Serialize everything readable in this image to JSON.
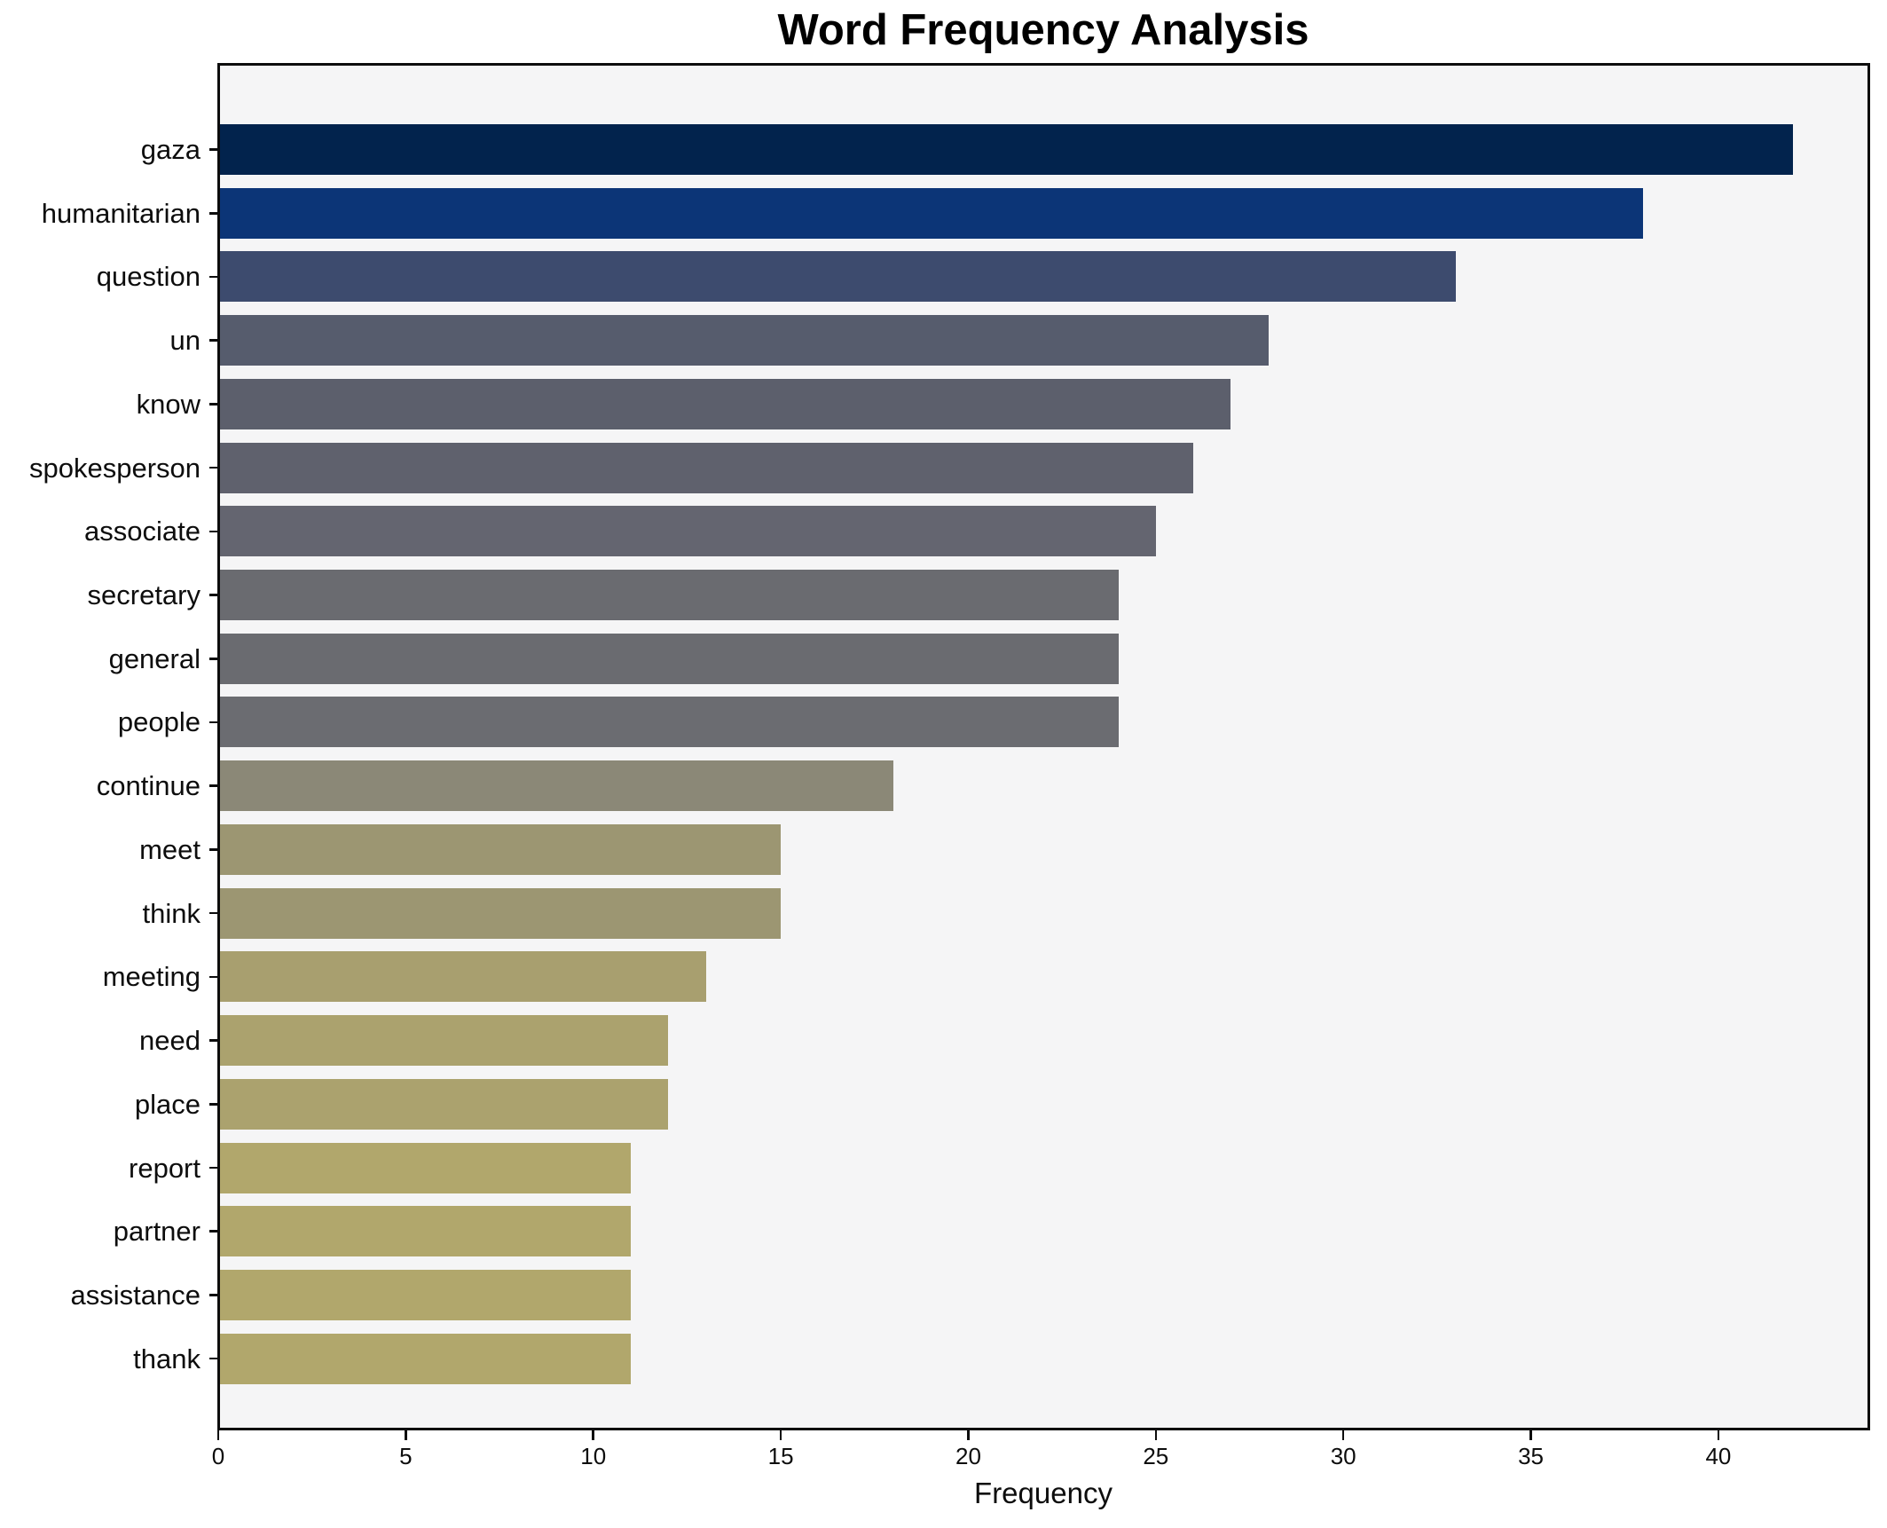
{
  "title": "Word Frequency Analysis",
  "axis": {
    "xlabel": "Frequency"
  },
  "style": {
    "plot_background": "#f5f5f6",
    "figure_background": "#ffffff",
    "spine_color": "#0d0d0d",
    "text_color": "#0d0d0d"
  },
  "chart_data": {
    "type": "bar",
    "orientation": "horizontal",
    "title": "Word Frequency Analysis",
    "xlabel": "Frequency",
    "ylabel": "",
    "grid": false,
    "legend": "none",
    "xlim": [
      0,
      44
    ],
    "xticks": [
      0,
      5,
      10,
      15,
      20,
      25,
      30,
      35,
      40
    ],
    "categories": [
      "gaza",
      "humanitarian",
      "question",
      "un",
      "know",
      "spokesperson",
      "associate",
      "secretary",
      "general",
      "people",
      "continue",
      "meet",
      "think",
      "meeting",
      "need",
      "place",
      "report",
      "partner",
      "assistance",
      "thank"
    ],
    "values": [
      42,
      38,
      33,
      28,
      27,
      26,
      25,
      24,
      24,
      24,
      18,
      15,
      15,
      13,
      12,
      12,
      11,
      11,
      11,
      11
    ],
    "bar_colors": [
      "#02234d",
      "#0c3577",
      "#3d4b6e",
      "#565c6d",
      "#5c5f6c",
      "#5f616d",
      "#646570",
      "#6a6b70",
      "#6a6b70",
      "#6b6c71",
      "#8b8877",
      "#9c9672",
      "#9c9672",
      "#a89f6f",
      "#aba26e",
      "#aba26e",
      "#b1a76c",
      "#b1a76c",
      "#b1a76c",
      "#b1a76c"
    ]
  }
}
